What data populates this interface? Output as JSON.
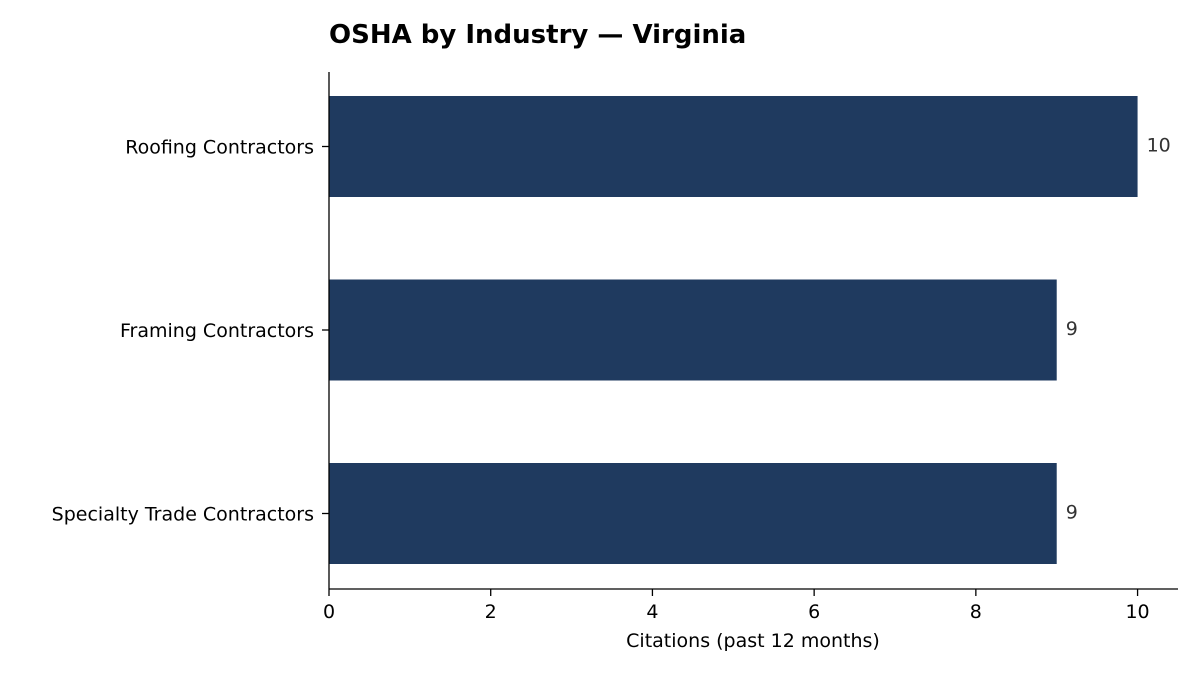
{
  "chart_data": {
    "type": "bar",
    "orientation": "horizontal",
    "title": "OSHA by Industry — Virginia",
    "xlabel": "Citations (past 12 months)",
    "ylabel": "",
    "categories": [
      "Roofing Contractors",
      "Framing Contractors",
      "Specialty Trade Contractors"
    ],
    "values": [
      10,
      9,
      9
    ],
    "data_labels": [
      "10",
      "9",
      "9"
    ],
    "xlim": [
      0,
      10.5
    ],
    "xticks": [
      0,
      2,
      4,
      6,
      8,
      10
    ],
    "xtick_labels": [
      "0",
      "2",
      "4",
      "6",
      "8",
      "10"
    ],
    "grid": false,
    "legend": "none",
    "bar_color": "#1f3a5f"
  }
}
